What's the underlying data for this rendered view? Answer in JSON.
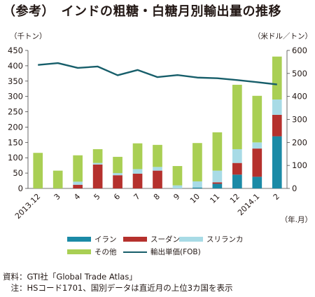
{
  "header": {
    "title": "（参考）　インドの粗糖・白糖月別輸出量の推移",
    "left_unit": "（千トン）",
    "right_unit": "（米ドル／トン）",
    "x_unit": "（年.月）"
  },
  "chart_data": {
    "type": "bar",
    "stacked": true,
    "categories": [
      "2013.12",
      "3",
      "4",
      "5",
      "6",
      "7",
      "8",
      "9",
      "10",
      "11",
      "12",
      "2014.1",
      "2"
    ],
    "series": [
      {
        "name": "イラン",
        "color": "#1b8aa6",
        "values": [
          0,
          0,
          0,
          0,
          0,
          0,
          0,
          0,
          3,
          15,
          45,
          38,
          170
        ]
      },
      {
        "name": "スーダン",
        "color": "#b5312d",
        "values": [
          0,
          0,
          12,
          78,
          43,
          48,
          58,
          0,
          0,
          5,
          38,
          92,
          70
        ]
      },
      {
        "name": "スリランカ",
        "color": "#a8dbe6",
        "values": [
          0,
          0,
          10,
          5,
          7,
          15,
          12,
          10,
          20,
          38,
          45,
          20,
          50
        ]
      },
      {
        "name": "その他",
        "color": "#a9cf54",
        "values": [
          116,
          58,
          86,
          45,
          53,
          84,
          72,
          63,
          125,
          125,
          210,
          152,
          140
        ]
      }
    ],
    "line": {
      "name": "輸出単価(FOB)",
      "color": "#175e6a",
      "axis": "right",
      "values": [
        537,
        545,
        524,
        530,
        492,
        515,
        484,
        493,
        482,
        479,
        471,
        462,
        452
      ]
    },
    "y_left": {
      "min": 0,
      "max": 450,
      "ticks": [
        0,
        50,
        100,
        150,
        200,
        250,
        300,
        350,
        400,
        450
      ]
    },
    "y_right": {
      "min": 0,
      "max": 600,
      "ticks": [
        0,
        100,
        200,
        300,
        400,
        500,
        600
      ]
    },
    "grid": false,
    "legend_position": "bottom"
  },
  "notes": {
    "source": "資料：GTI社「Global Trade Atlas」",
    "note": "　注：HSコード1701、国別データは直近月の上位3カ国を表示"
  }
}
